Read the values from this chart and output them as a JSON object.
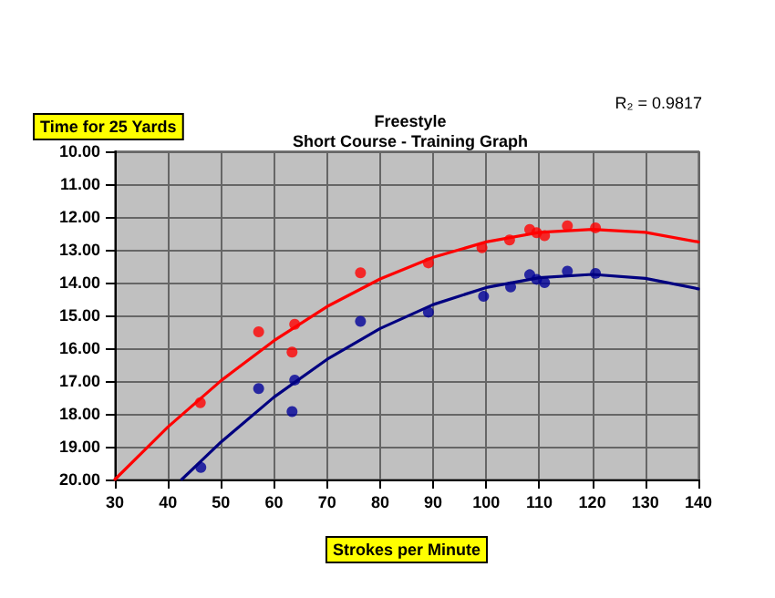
{
  "chart_data": {
    "type": "scatter",
    "title": "Freestyle",
    "subtitle": "Short Course - Training Graph",
    "xlabel": "Strokes per Minute",
    "ylabel": "Time for 25 Yards",
    "annotations": [
      "R₂ = 0.9817"
    ],
    "xlim": [
      30,
      140
    ],
    "xticks": [
      30,
      40,
      50,
      60,
      70,
      80,
      90,
      100,
      110,
      120,
      130,
      140
    ],
    "ylim": [
      20,
      10
    ],
    "yticks": [
      {
        "value": 10,
        "label": "10.00"
      },
      {
        "value": 11,
        "label": "11.00"
      },
      {
        "value": 12,
        "label": "12.00"
      },
      {
        "value": 13,
        "label": "13.00"
      },
      {
        "value": 14,
        "label": "14.00"
      },
      {
        "value": 15,
        "label": "15.00"
      },
      {
        "value": 16,
        "label": "16.00"
      },
      {
        "value": 17,
        "label": "17.00"
      },
      {
        "value": 18,
        "label": "18.00"
      },
      {
        "value": 19,
        "label": "19.00"
      },
      {
        "value": 20,
        "label": "20.00"
      }
    ],
    "grid": true,
    "marker": "circle",
    "series": [
      {
        "color": "#ff0000",
        "x": [
          46.1,
          57.1,
          63.4,
          63.9,
          76.3,
          89.1,
          99.2,
          104.4,
          108.2,
          109.5,
          111.0,
          115.3,
          120.6
        ],
        "values": [
          17.66,
          15.5,
          16.12,
          15.27,
          13.7,
          13.4,
          12.94,
          12.7,
          12.38,
          12.48,
          12.57,
          12.27,
          12.33
        ]
      },
      {
        "color": "#000099",
        "x": [
          46.2,
          57.1,
          63.4,
          63.9,
          76.3,
          89.1,
          99.5,
          104.6,
          108.2,
          109.5,
          111.0,
          115.3,
          120.6
        ],
        "values": [
          19.63,
          17.23,
          17.93,
          16.97,
          15.18,
          14.9,
          14.42,
          14.13,
          13.76,
          13.9,
          14.0,
          13.65,
          13.72
        ]
      },
      {
        "type": "line",
        "color": "#ff0000",
        "marker": "none",
        "line_style": "solid",
        "x": [
          30,
          40,
          50,
          60,
          70,
          80,
          90,
          100,
          110,
          120,
          130,
          140
        ],
        "values": [
          20.0,
          18.4,
          16.99,
          15.77,
          14.73,
          13.89,
          13.23,
          12.76,
          12.47,
          12.38,
          12.47,
          12.76
        ]
      },
      {
        "type": "line",
        "color": "#000080",
        "marker": "none",
        "line_style": "solid",
        "x": [
          42.6,
          50,
          60,
          70,
          80,
          90,
          100,
          110,
          120,
          130,
          140
        ],
        "values": [
          20.0,
          18.86,
          17.49,
          16.34,
          15.4,
          14.67,
          14.15,
          13.85,
          13.75,
          13.87,
          14.19
        ]
      }
    ]
  }
}
